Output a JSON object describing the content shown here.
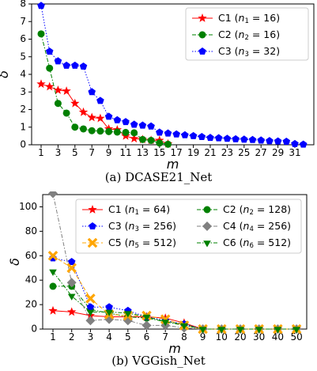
{
  "chart_data": [
    {
      "type": "line",
      "caption": "(a) DCASE21_Net",
      "xlabel": "m",
      "ylabel": "δ",
      "ylim": [
        0,
        8
      ],
      "yticks": [
        0,
        1,
        2,
        3,
        4,
        5,
        6,
        7,
        8
      ],
      "xticks": [
        1,
        3,
        5,
        7,
        9,
        11,
        13,
        15,
        17,
        19,
        21,
        23,
        25,
        27,
        29,
        31
      ],
      "xlim": [
        1,
        32
      ],
      "grid": false,
      "legend_position": "top-right",
      "series": [
        {
          "legend_main": "C1 (",
          "legend_sub": "1",
          "legend_rest": " = 16)",
          "color": "#ff0000",
          "marker": "star",
          "dash": "solid",
          "x": [
            1,
            2,
            3,
            4,
            5,
            6,
            7,
            8,
            9,
            10,
            11,
            12,
            13,
            14,
            15,
            16
          ],
          "y": [
            3.45,
            3.3,
            3.1,
            3.05,
            2.35,
            1.85,
            1.55,
            1.5,
            0.9,
            0.85,
            0.5,
            0.35,
            0.3,
            0.25,
            0.25,
            0.05
          ]
        },
        {
          "legend_main": "C2 (",
          "legend_sub": "2",
          "legend_rest": " = 16)",
          "color": "#008000",
          "marker": "circle",
          "dash": "dashdot",
          "x": [
            1,
            2,
            3,
            4,
            5,
            6,
            7,
            8,
            9,
            10,
            11,
            12,
            13,
            14,
            15,
            16
          ],
          "y": [
            6.3,
            4.35,
            2.35,
            1.8,
            1.0,
            0.9,
            0.8,
            0.78,
            0.75,
            0.72,
            0.7,
            0.68,
            0.3,
            0.25,
            0.1,
            0.03
          ]
        },
        {
          "legend_main": "C3 (",
          "legend_sub": "3",
          "legend_rest": " = 32)",
          "color": "#0000ff",
          "marker": "pentagon",
          "dash": "dotted",
          "x": [
            1,
            2,
            3,
            4,
            5,
            6,
            7,
            8,
            9,
            10,
            11,
            12,
            13,
            14,
            15,
            16,
            17,
            18,
            19,
            20,
            21,
            22,
            23,
            24,
            25,
            26,
            27,
            28,
            29,
            30,
            31,
            32
          ],
          "y": [
            7.9,
            5.3,
            4.75,
            4.5,
            4.5,
            4.45,
            3.0,
            2.5,
            1.6,
            1.4,
            1.3,
            1.15,
            1.1,
            1.05,
            0.7,
            0.65,
            0.6,
            0.55,
            0.5,
            0.45,
            0.4,
            0.38,
            0.35,
            0.32,
            0.3,
            0.28,
            0.25,
            0.22,
            0.2,
            0.18,
            0.05,
            0.02
          ]
        }
      ]
    },
    {
      "type": "line",
      "caption": "(b) VGGish_Net",
      "xlabel": "m",
      "ylabel": "δ",
      "ylim": [
        0,
        110
      ],
      "yticks": [
        0,
        20,
        40,
        60,
        80,
        100
      ],
      "categories": [
        "1",
        "2",
        "3",
        "4",
        "5",
        "6",
        "7",
        "8",
        "9",
        "10",
        "20",
        "30",
        "40",
        "50"
      ],
      "grid": false,
      "legend_position": "top-right",
      "series": [
        {
          "legend_main": "C1 (",
          "legend_sub": "1",
          "legend_rest": " = 64)",
          "color": "#ff0000",
          "marker": "star",
          "dash": "solid",
          "values": [
            15,
            14,
            11,
            10,
            10,
            10,
            9,
            5,
            0,
            0,
            0,
            0,
            0,
            0
          ]
        },
        {
          "legend_main": "C2 (",
          "legend_sub": "2",
          "legend_rest": " = 128)",
          "color": "#008000",
          "marker": "circle",
          "dash": "dashdot",
          "values": [
            35,
            35,
            16,
            13,
            10,
            9,
            6,
            4,
            0,
            0,
            0,
            0,
            0,
            0
          ]
        },
        {
          "legend_main": "C3 (",
          "legend_sub": "3",
          "legend_rest": " = 256)",
          "color": "#0000ff",
          "marker": "pentagon",
          "dash": "dotted",
          "values": [
            58,
            55,
            18,
            18,
            15,
            10,
            7,
            4,
            0,
            0,
            0,
            0,
            0,
            0
          ]
        },
        {
          "legend_main": "C4 (",
          "legend_sub": "4",
          "legend_rest": " = 256)",
          "color": "#808080",
          "marker": "diamond",
          "dash": "dashdot",
          "values": [
            111,
            38,
            7,
            8,
            7,
            3,
            3,
            1,
            0,
            0,
            0,
            0,
            0,
            0
          ]
        },
        {
          "legend_main": "C5 (",
          "legend_sub": "5",
          "legend_rest": " = 512)",
          "color": "#ffa500",
          "marker": "x",
          "dash": "dashed",
          "values": [
            60,
            50,
            25,
            12,
            11,
            11,
            8,
            3,
            0,
            0,
            0,
            0,
            0,
            0
          ]
        },
        {
          "legend_main": "C6 (",
          "legend_sub": "6",
          "legend_rest": " = 512)",
          "color": "#008000",
          "marker": "triangle-down",
          "dash": "dashdot",
          "values": [
            47,
            27,
            14,
            14,
            13,
            10,
            6,
            3,
            0,
            0,
            0,
            0,
            0,
            0
          ]
        }
      ]
    }
  ]
}
